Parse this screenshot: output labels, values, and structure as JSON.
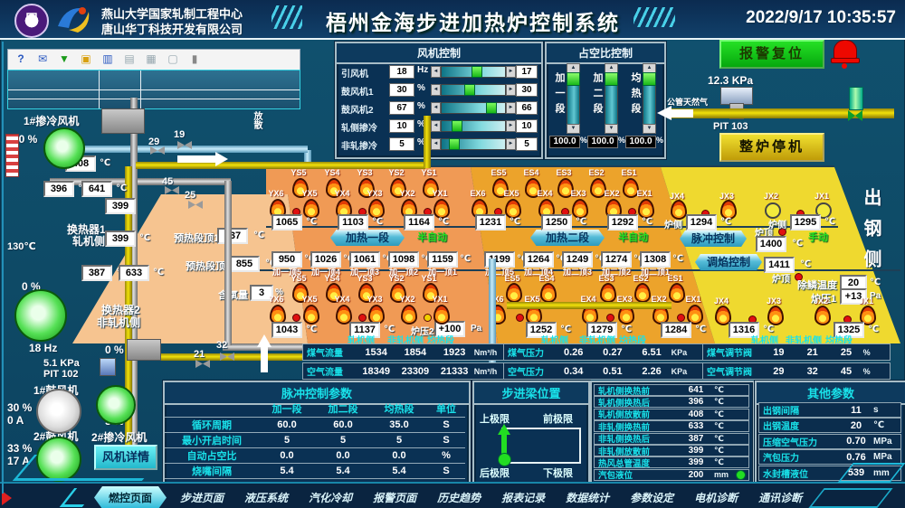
{
  "header": {
    "org1": "燕山大学国家轧制工程中心",
    "org2": "唐山华丁科技开发有限公司",
    "title": "梧州金海步进加热炉控制系统",
    "datetime": "2022/9/17 10:35:57"
  },
  "toolbar": {
    "icons": [
      "help",
      "send",
      "export",
      "folder",
      "chart",
      "report",
      "grid",
      "print",
      "lock"
    ]
  },
  "fan_control": {
    "title": "风机控制",
    "rows": [
      {
        "label": "引风机",
        "value": "18",
        "unit": "Hz",
        "pos": 55,
        "sp": "17"
      },
      {
        "label": "鼓风机1",
        "value": "30",
        "unit": "%",
        "pos": 42,
        "sp": "30"
      },
      {
        "label": "鼓风机2",
        "value": "67",
        "unit": "%",
        "pos": 82,
        "sp": "66"
      },
      {
        "label": "轧侧掺冷",
        "value": "10",
        "unit": "%",
        "pos": 18,
        "sp": "10"
      },
      {
        "label": "非轧掺冷",
        "value": "5",
        "unit": "%",
        "pos": 14,
        "sp": "5"
      }
    ]
  },
  "duty_control": {
    "title": "占空比控制",
    "sliders": [
      {
        "label": "加一段",
        "value": "100.0",
        "unit": "%"
      },
      {
        "label": "加二段",
        "value": "100.0",
        "unit": "%"
      },
      {
        "label": "均热段",
        "value": "100.0",
        "unit": "%"
      }
    ]
  },
  "top_right": {
    "alarm_btn": "报警复位",
    "stop_btn": "整炉停机",
    "pressure": "12.3 KPa",
    "tag": "PIT 103",
    "pipe_label": "公管天然气"
  },
  "furnace": {
    "out_side": "出钢侧",
    "top": {
      "a": {
        "ys": [
          "YS5",
          "YS4",
          "YS3",
          "YS2",
          "YS1"
        ],
        "yx": [
          "YX6",
          "YX5",
          "YX4",
          "YX3",
          "YX2",
          "YX1"
        ],
        "temps": [
          "1065",
          "1103",
          "1164"
        ]
      },
      "b": {
        "es": [
          "ES5",
          "ES4",
          "ES3",
          "ES2",
          "ES1"
        ],
        "ex": [
          "EX6",
          "EX5",
          "EX4",
          "EX3",
          "EX2",
          "EX1"
        ],
        "temps": [
          "1231",
          "1250",
          "1292"
        ]
      },
      "c": {
        "jx": [
          {
            "label": "JX4",
            "lit": true
          },
          {
            "label": "JX3",
            "lit": true
          },
          {
            "label": "JX2",
            "lit": false
          },
          {
            "label": "JX1",
            "lit": false
          }
        ],
        "temps": [
          {
            "label": "炉侧",
            "value": "1294"
          },
          {
            "label": "炉侧",
            "value": "1295"
          }
        ]
      }
    },
    "mid": {
      "banner1": "加热一段",
      "mode1": "半自动",
      "t1": [
        {
          "v": "950",
          "l": "加一顶5"
        },
        {
          "v": "1026",
          "l": "加一顶4"
        },
        {
          "v": "1061",
          "l": "加一顶3"
        },
        {
          "v": "1098",
          "l": "加一顶2"
        },
        {
          "v": "1159",
          "l": "加一顶1"
        }
      ],
      "banner2": "加热二段",
      "mode2": "半自动",
      "t2": [
        {
          "v": "1199",
          "l": "加二顶5"
        },
        {
          "v": "1264",
          "l": "加二顶4"
        },
        {
          "v": "1249",
          "l": "加二顶3"
        },
        {
          "v": "1274",
          "l": "加二顶2"
        },
        {
          "v": "1308",
          "l": "加二顶1"
        }
      ],
      "pulse_btn": "脉冲控制",
      "flame_btn": "调焰控制",
      "roof_label": "炉顶",
      "roof1": "1400",
      "roof2": "1411",
      "mode3": "手动",
      "unit": "℃"
    },
    "bottom": {
      "a": {
        "ys": [
          "YS5",
          "YS4",
          "YS3",
          "YS2",
          "YS1"
        ],
        "yx": [
          "YX6",
          "YX5",
          "YX4",
          "YX3",
          "YX2",
          "YX1"
        ],
        "temps": [
          "1043",
          "1137"
        ],
        "press": {
          "label": "炉压2",
          "value": "+100",
          "unit": "Pa"
        }
      },
      "b": {
        "es": [
          "ES5",
          "ES4",
          "ES3",
          "ES2",
          "ES1"
        ],
        "ex": [
          "EX6",
          "EX5",
          "EX4",
          "EX3",
          "EX2",
          "EX1"
        ],
        "temps": [
          "1252",
          "1279",
          "1284"
        ]
      },
      "c": {
        "jx": [
          "JX4",
          "JX3",
          "JX2",
          "JX1"
        ],
        "temps": [
          "1316",
          "1325"
        ]
      },
      "descale": {
        "label": "除鳞温度",
        "value": "20",
        "unit": "℃"
      },
      "press": {
        "label": "炉压1",
        "value": "+13",
        "unit": "Pa"
      }
    },
    "preheat": {
      "roof1_label": "预热段顶1",
      "roof1": "837",
      "roof2_label": "预热段顶2",
      "roof2": "855",
      "oxy_label": "含氧量",
      "oxy": "3",
      "oxy_unit": "%",
      "unit": "℃"
    }
  },
  "left": {
    "fan1_name": "1#掺冷风机",
    "fan1_out": "0 %",
    "fan1_spd": "10 %",
    "vent": "放散",
    "v408": "408",
    "v396": "396",
    "v641": "641",
    "v399a": "399",
    "v399b": "399",
    "v130": "130℃",
    "v387": "387",
    "v633": "633",
    "hx1a": "换热器1",
    "hx1b": "轧机侧",
    "hx2a": "换热器2",
    "hx2b": "非轧机侧",
    "valve29": "29",
    "valve19": "19",
    "valve45": "45",
    "valve25": "25",
    "valve21": "21",
    "valve32": "32",
    "bigfan_out": "0 %",
    "freq": "18 Hz",
    "mid_out": "0 %",
    "kpa": "5.1 KPa",
    "pit": "PIT 102",
    "blower1": "1#鼓风机",
    "blower1_pct": "30 %",
    "blower1_amp": "0 A",
    "blower2": "2#鼓风机",
    "blower2_pct": "33 %",
    "blower2_amp": "17 A",
    "fan2_name": "2#掺冷风机",
    "fan2_pct": "5 %",
    "fan_detail": "风机详情",
    "unit_c": "℃"
  },
  "mid_tables": {
    "headers": [
      "轧机侧",
      "非轧机侧",
      "均热段"
    ],
    "flow": [
      {
        "label": "煤气流量",
        "values": [
          "1534",
          "1854",
          "1923"
        ],
        "unit": "Nm³/h"
      },
      {
        "label": "空气流量",
        "values": [
          "18349",
          "23309",
          "21333"
        ],
        "unit": "Nm³/h"
      }
    ],
    "press": [
      {
        "label": "煤气压力",
        "values": [
          "0.26",
          "0.27",
          "6.51"
        ],
        "unit": "KPa"
      },
      {
        "label": "空气压力",
        "values": [
          "0.34",
          "0.51",
          "2.26"
        ],
        "unit": "KPa"
      }
    ],
    "valve": [
      {
        "label": "煤气调节阀",
        "values": [
          "19",
          "21",
          "25"
        ],
        "unit": "%"
      },
      {
        "label": "空气调节阀",
        "values": [
          "29",
          "32",
          "45"
        ],
        "unit": "%"
      }
    ]
  },
  "pulse": {
    "title": "脉冲控制参数",
    "cols": [
      "加一段",
      "加二段",
      "均热段",
      "单位"
    ],
    "rows": [
      {
        "label": "循环周期",
        "values": [
          "60.0",
          "60.0",
          "35.0"
        ],
        "unit": "S"
      },
      {
        "label": "最小开启时间",
        "values": [
          "5",
          "5",
          "5"
        ],
        "unit": "S"
      },
      {
        "label": "自动占空比",
        "values": [
          "0.0",
          "0.0",
          "0.0"
        ],
        "unit": "%"
      },
      {
        "label": "烧嘴间隔",
        "values": [
          "5.4",
          "5.4",
          "5.4"
        ],
        "unit": "S"
      }
    ]
  },
  "beam": {
    "title": "步进梁位置",
    "tl": "上极限",
    "fl": "前极限",
    "rl": "后极限",
    "bl": "下极限"
  },
  "heat": [
    {
      "label": "轧机侧换热前",
      "value": "641",
      "unit": "℃"
    },
    {
      "label": "轧机侧换热后",
      "value": "396",
      "unit": "℃"
    },
    {
      "label": "轧机侧放散前",
      "value": "408",
      "unit": "℃"
    },
    {
      "label": "非轧侧换热前",
      "value": "633",
      "unit": "℃"
    },
    {
      "label": "非轧侧换热后",
      "value": "387",
      "unit": "℃"
    },
    {
      "label": "非轧侧放散前",
      "value": "399",
      "unit": "℃"
    },
    {
      "label": "热风总管温度",
      "value": "399",
      "unit": "℃"
    },
    {
      "label": "汽包液位",
      "value": "200",
      "unit": "mm",
      "dot": true
    }
  ],
  "other": {
    "title": "其他参数",
    "rows": [
      {
        "label": "出钢间隔",
        "value": "11",
        "unit": "s"
      },
      {
        "label": "出钢温度",
        "value": "20",
        "unit": "℃"
      },
      {
        "label": "压缩空气压力",
        "value": "0.70",
        "unit": "MPa"
      },
      {
        "label": "汽包压力",
        "value": "0.76",
        "unit": "MPa"
      },
      {
        "label": "水封槽液位",
        "value": "539",
        "unit": "mm"
      }
    ]
  },
  "tabs": {
    "items": [
      "燃控页面",
      "步进页面",
      "液压系统",
      "汽化冷却",
      "报警页面",
      "历史趋势",
      "报表记录",
      "数据统计",
      "参数设定",
      "电机诊断",
      "通讯诊断"
    ],
    "active": 0
  }
}
